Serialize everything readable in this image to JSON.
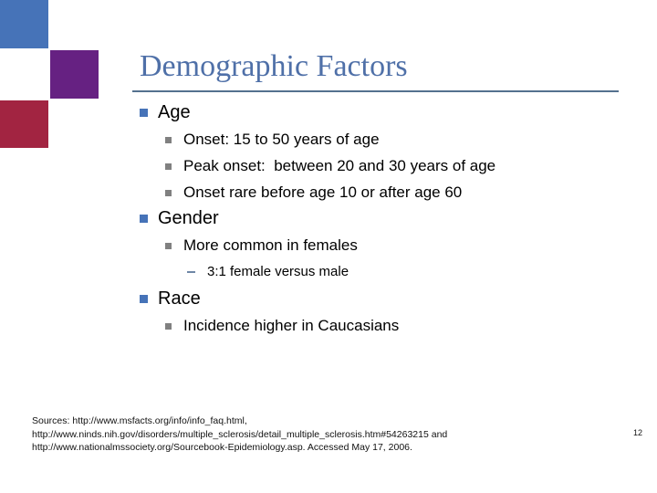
{
  "slide": {
    "title": "Demographic Factors",
    "page_number": "12"
  },
  "colors": {
    "decor_blue": "#4673b8",
    "decor_purple": "#662182",
    "decor_red": "#a22441",
    "title_text": "#4f70a8",
    "title_rule": "#54718e",
    "bullet_level1": "#4673b8",
    "bullet_level2": "#808080",
    "dash_level3": "#6f87a6"
  },
  "content": {
    "items": [
      {
        "level": 1,
        "text": "Age"
      },
      {
        "level": 2,
        "text": "Onset: 15 to 50 years of age"
      },
      {
        "level": 2,
        "text": "Peak onset:  between 20 and 30 years of age"
      },
      {
        "level": 2,
        "text": "Onset rare before age 10 or after age 60"
      },
      {
        "level": 1,
        "text": "Gender"
      },
      {
        "level": 2,
        "text": "More common in females"
      },
      {
        "level": 3,
        "text": "3:1 female versus male"
      },
      {
        "level": 1,
        "text": "Race"
      },
      {
        "level": 2,
        "text": "Incidence higher in Caucasians"
      }
    ]
  },
  "footer": {
    "line1": "Sources: http://www.msfacts.org/info/info_faq.html, http://www.ninds.nih.gov/disorders/multiple_sclerosis/detail_multiple_sclerosis.htm#54263215 and",
    "line2": "http://www.nationalmssociety.org/Sourcebook-Epidemiology.asp. Accessed May 17, 2006."
  }
}
